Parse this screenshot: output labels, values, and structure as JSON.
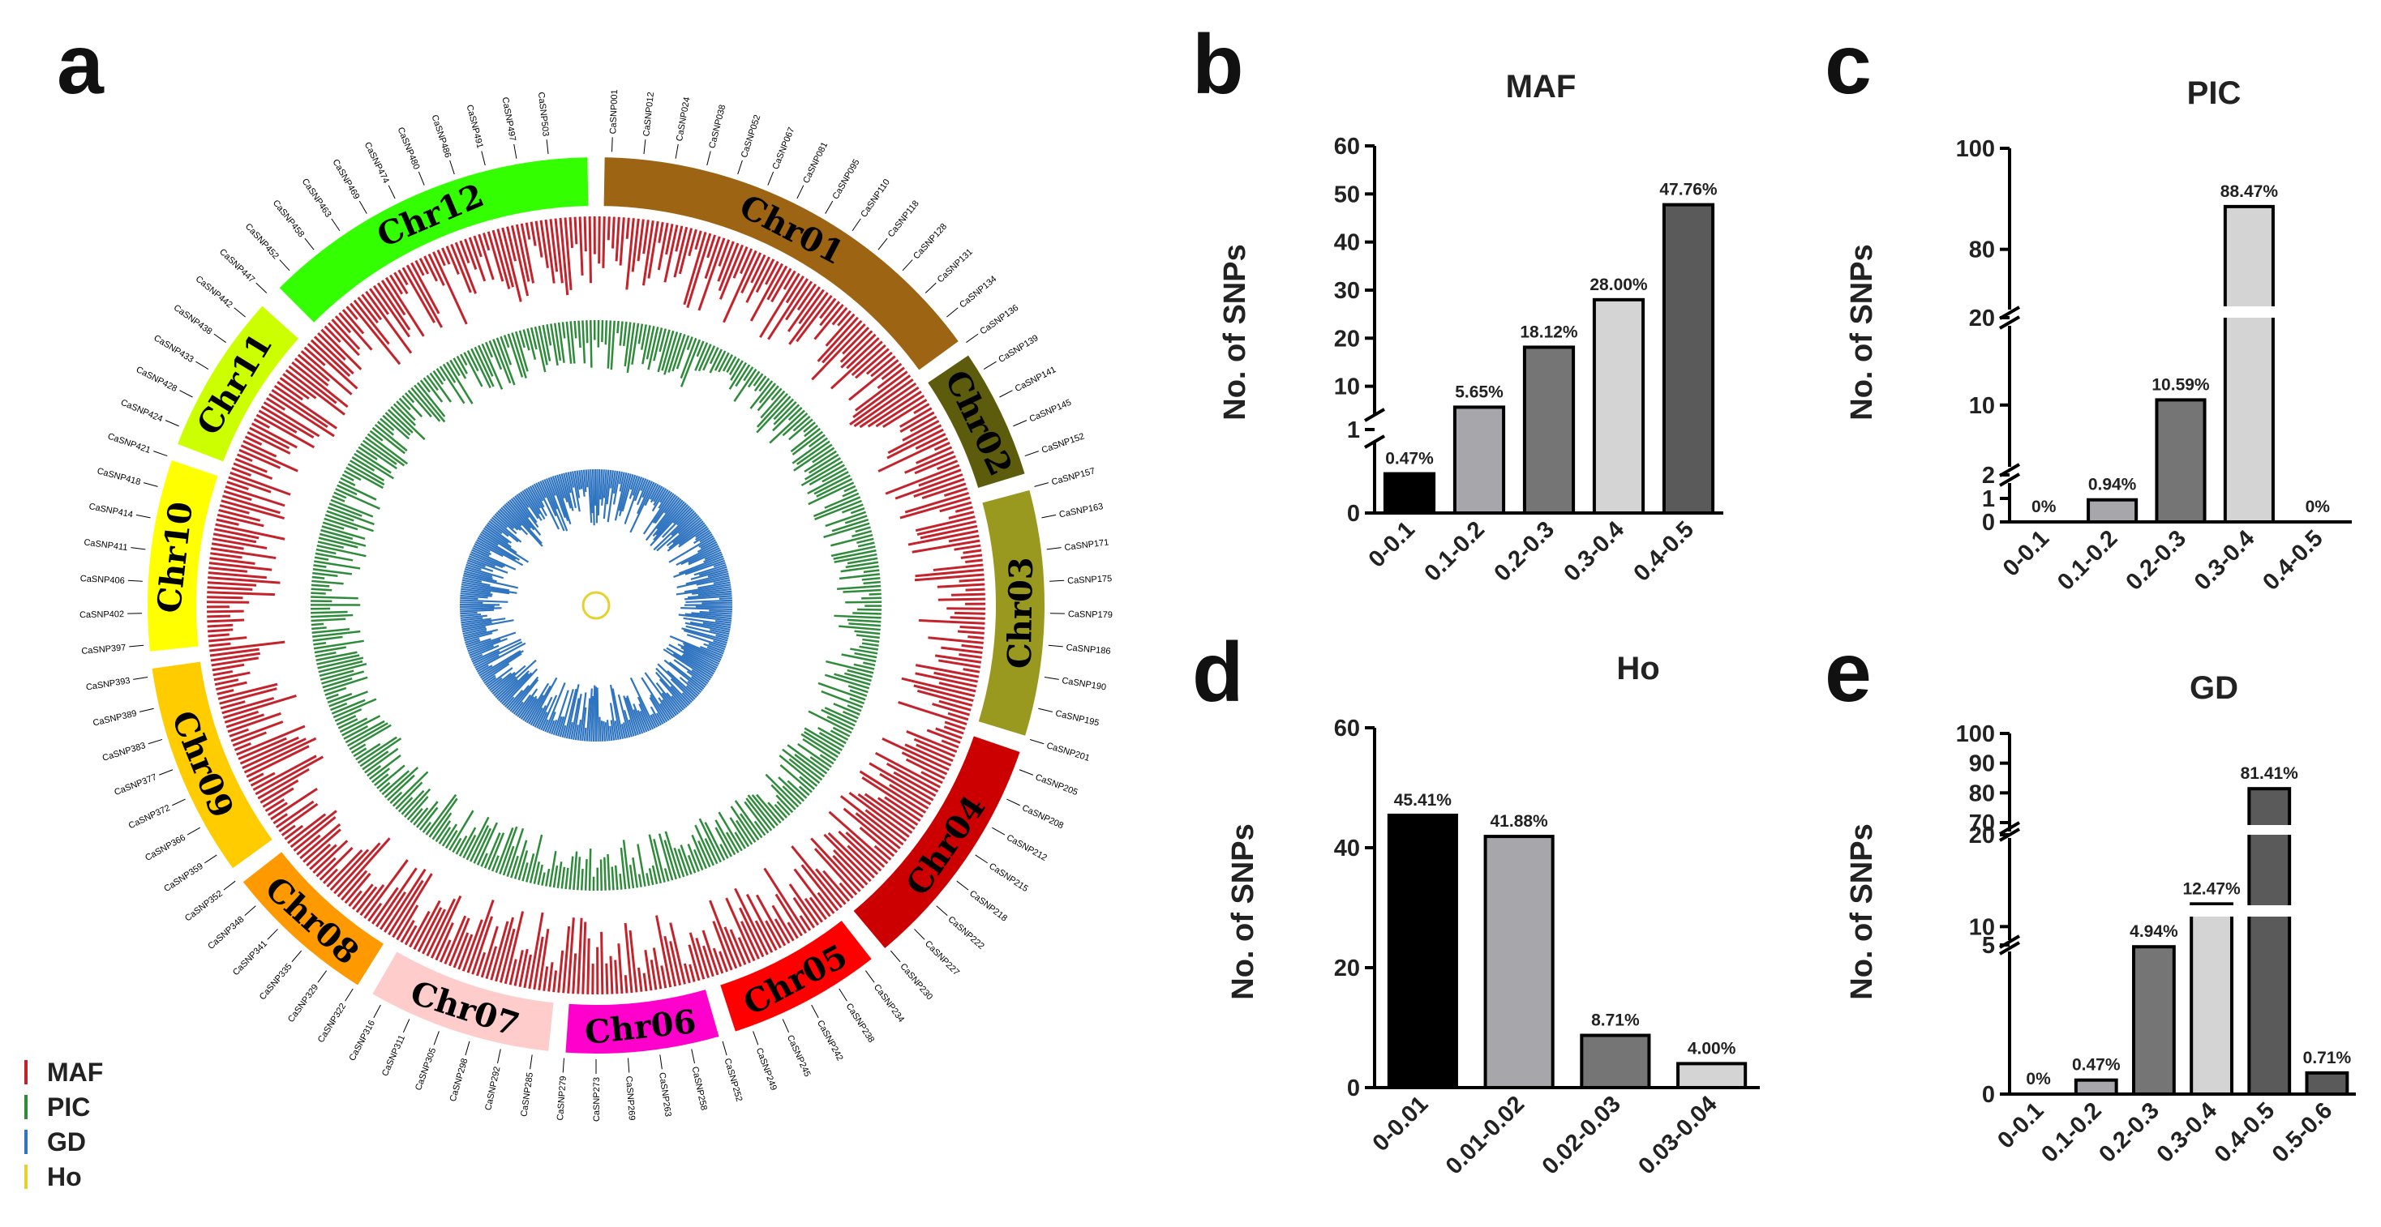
{
  "panel_a": {
    "label": "a",
    "chromosomes": [
      {
        "name": "Chr01",
        "color": "#9C6413"
      },
      {
        "name": "Chr02",
        "color": "#5C5C0C"
      },
      {
        "name": "Chr03",
        "color": "#999920"
      },
      {
        "name": "Chr04",
        "color": "#CC0000"
      },
      {
        "name": "Chr05",
        "color": "#FF0000"
      },
      {
        "name": "Chr06",
        "color": "#FF00CC"
      },
      {
        "name": "Chr07",
        "color": "#FFCCCC"
      },
      {
        "name": "Chr08",
        "color": "#FF9900"
      },
      {
        "name": "Chr09",
        "color": "#FFCC00"
      },
      {
        "name": "Chr10",
        "color": "#FFFF00"
      },
      {
        "name": "Chr11",
        "color": "#CCFF00"
      },
      {
        "name": "Chr12",
        "color": "#33FF00"
      }
    ],
    "tracks": [
      {
        "name": "MAF",
        "color": "#C4232B"
      },
      {
        "name": "PIC",
        "color": "#2E8B3A"
      },
      {
        "name": "GD",
        "color": "#2F74C0"
      },
      {
        "name": "Ho",
        "color": "#E6D22E"
      }
    ],
    "snp_labels": [
      "CaSNP001",
      "CaSNP012",
      "CaSNP024",
      "CaSNP038",
      "CaSNP052",
      "CaSNP067",
      "CaSNP081",
      "CaSNP095",
      "CaSNP110",
      "CaSNP118",
      "CaSNP128",
      "CaSNP131",
      "CaSNP134",
      "CaSNP136",
      "CaSNP139",
      "CaSNP141",
      "CaSNP145",
      "CaSNP152",
      "CaSNP157",
      "CaSNP163",
      "CaSNP171",
      "CaSNP175",
      "CaSNP179",
      "CaSNP186",
      "CaSNP190",
      "CaSNP195",
      "CaSNP201",
      "CaSNP205",
      "CaSNP208",
      "CaSNP212",
      "CaSNP215",
      "CaSNP218",
      "CaSNP222",
      "CaSNP227",
      "CaSNP230",
      "CaSNP234",
      "CaSNP238",
      "CaSNP242",
      "CaSNP245",
      "CaSNP249",
      "CaSNP252",
      "CaSNP258",
      "CaSNP263",
      "CaSNP269",
      "CaSNP273",
      "CaSNP279",
      "CaSNP285",
      "CaSNP292",
      "CaSNP298",
      "CaSNP305",
      "CaSNP311",
      "CaSNP316",
      "CaSNP322",
      "CaSNP329",
      "CaSNP335",
      "CaSNP341",
      "CaSNP348",
      "CaSNP352",
      "CaSNP359",
      "CaSNP366",
      "CaSNP372",
      "CaSNP377",
      "CaSNP383",
      "CaSNP389",
      "CaSNP393",
      "CaSNP397",
      "CaSNP402",
      "CaSNP406",
      "CaSNP411",
      "CaSNP414",
      "CaSNP418",
      "CaSNP421",
      "CaSNP424",
      "CaSNP428",
      "CaSNP433",
      "CaSNP438",
      "CaSNP442",
      "CaSNP447",
      "CaSNP452",
      "CaSNP458",
      "CaSNP463",
      "CaSNP469",
      "CaSNP474",
      "CaSNP480",
      "CaSNP486",
      "CaSNP491",
      "CaSNP497",
      "CaSNP503"
    ]
  },
  "chart_data": [
    {
      "panel": "b",
      "type": "bar",
      "title": "MAF",
      "ylabel": "No. of SNPs",
      "categories": [
        "0-0.1",
        "0.1-0.2",
        "0.2-0.3",
        "0.3-0.4",
        "0.4-0.5"
      ],
      "values": [
        0.47,
        5.65,
        18.12,
        28.0,
        47.76
      ],
      "labels": [
        "0.47%",
        "5.65%",
        "18.12%",
        "28.00%",
        "47.76%"
      ],
      "colors": [
        "#000000",
        "#A6A6AB",
        "#757575",
        "#D4D4D4",
        "#5A5A5A"
      ],
      "axis_break": {
        "lower": [
          0,
          1
        ],
        "upper": [
          1,
          60
        ]
      },
      "yticks": [
        "0",
        "1",
        "10",
        "20",
        "30",
        "40",
        "50",
        "60"
      ]
    },
    {
      "panel": "c",
      "type": "bar",
      "title": "PIC",
      "ylabel": "No. of SNPs",
      "categories": [
        "0-0.1",
        "0.1-0.2",
        "0.2-0.3",
        "0.3-0.4",
        "0.4-0.5"
      ],
      "values": [
        0,
        0.94,
        10.59,
        88.47,
        0
      ],
      "labels": [
        "0%",
        "0.94%",
        "10.59%",
        "88.47%",
        "0%"
      ],
      "colors": [
        "#000000",
        "#A6A6AB",
        "#757575",
        "#D4D4D4",
        "#5A5A5A"
      ],
      "axis_break": {
        "segments": [
          [
            0,
            2
          ],
          [
            2,
            20
          ],
          [
            70,
            100
          ]
        ]
      },
      "yticks": [
        "0",
        "1",
        "2",
        "10",
        "20",
        "80",
        "100"
      ]
    },
    {
      "panel": "d",
      "type": "bar",
      "title": "Ho",
      "ylabel": "No. of SNPs",
      "categories": [
        "0-0.01",
        "0.01-0.02",
        "0.02-0.03",
        "0.03-0.04"
      ],
      "values": [
        45.41,
        41.88,
        8.71,
        4.0
      ],
      "labels": [
        "45.41%",
        "41.88%",
        "8.71%",
        "4.00%"
      ],
      "colors": [
        "#000000",
        "#A6A6AB",
        "#757575",
        "#D4D4D4"
      ],
      "ylim": [
        0,
        60
      ],
      "yticks": [
        "0",
        "20",
        "40",
        "60"
      ]
    },
    {
      "panel": "e",
      "type": "bar",
      "title": "GD",
      "ylabel": "No. of SNPs",
      "categories": [
        "0-0.1",
        "0.1-0.2",
        "0.2-0.3",
        "0.3-0.4",
        "0.4-0.5",
        "0.5-0.6"
      ],
      "values": [
        0,
        0.47,
        4.94,
        12.47,
        81.41,
        0.71
      ],
      "labels": [
        "0%",
        "0.47%",
        "4.94%",
        "12.47%",
        "81.41%",
        "0.71%"
      ],
      "colors": [
        "#000000",
        "#A6A6AB",
        "#757575",
        "#D4D4D4",
        "#5A5A5A",
        "#5A5A5A"
      ],
      "axis_break": {
        "segments": [
          [
            0,
            5
          ],
          [
            8,
            20
          ],
          [
            70,
            100
          ]
        ]
      },
      "yticks": [
        "0",
        "5",
        "10",
        "20",
        "70",
        "80",
        "90",
        "100"
      ]
    }
  ]
}
